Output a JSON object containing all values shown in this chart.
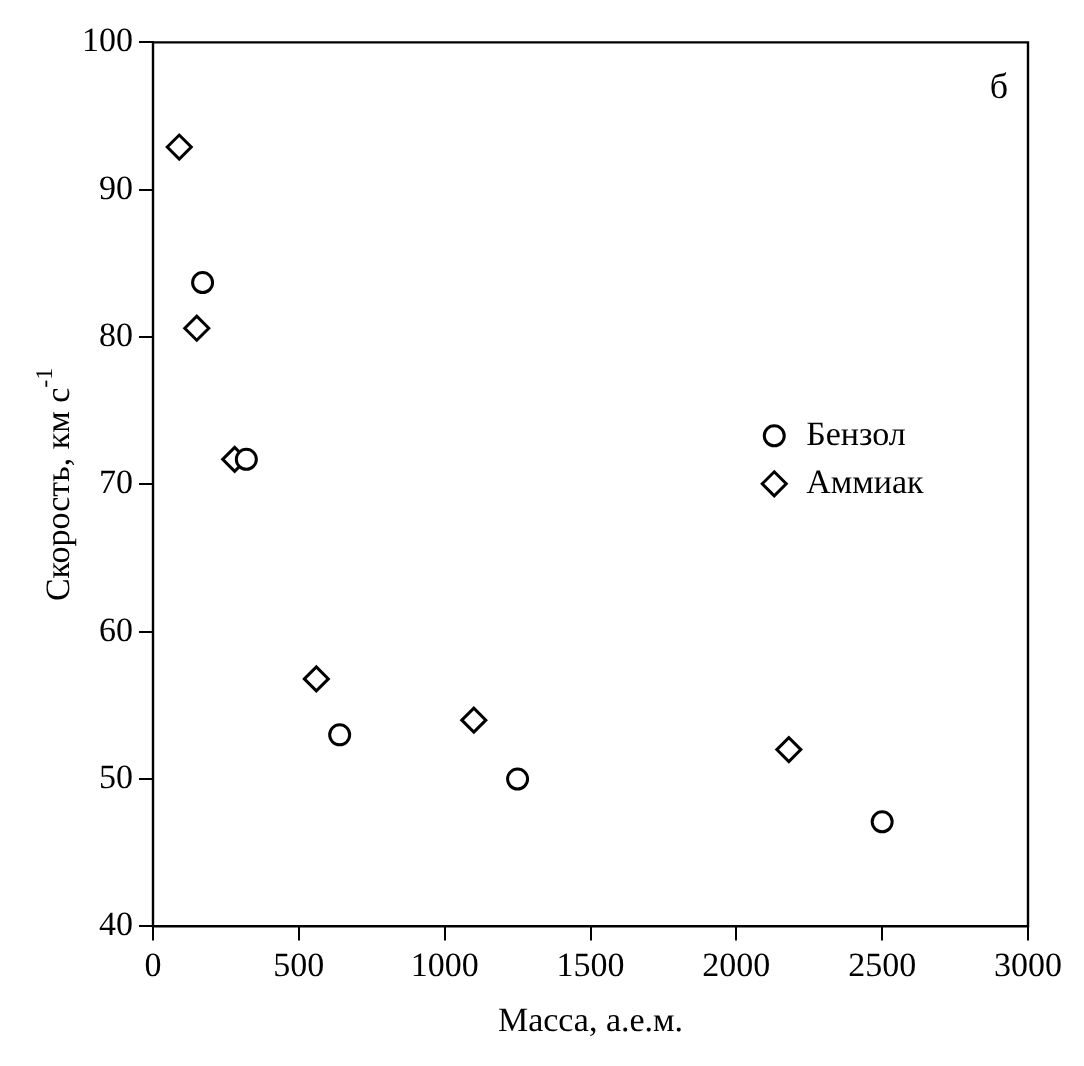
{
  "chart_data": {
    "type": "scatter",
    "xlabel": "Масса, а.е.м.",
    "ylabel": "Скорость, км с$^{-1}$",
    "annotations": [
      "б"
    ],
    "xlim": [
      0,
      3000
    ],
    "xticks": [
      0,
      500,
      1000,
      1500,
      2000,
      2500,
      3000
    ],
    "ylim": [
      40,
      100
    ],
    "yticks": [
      40,
      50,
      60,
      70,
      80,
      90,
      100
    ],
    "legend": "right",
    "series": [
      {
        "name": "Бензол",
        "color": "#000000",
        "marker": "circle",
        "x": [
          170,
          320,
          640,
          1250,
          2500
        ],
        "values": [
          83.7,
          71.7,
          53,
          50,
          47.1
        ]
      },
      {
        "name": "Аммиак",
        "color": "#000000",
        "marker": "diamond",
        "x": [
          90,
          150,
          280,
          560,
          1100,
          2180
        ],
        "values": [
          92.9,
          80.6,
          71.7,
          56.8,
          54,
          52
        ]
      }
    ]
  }
}
